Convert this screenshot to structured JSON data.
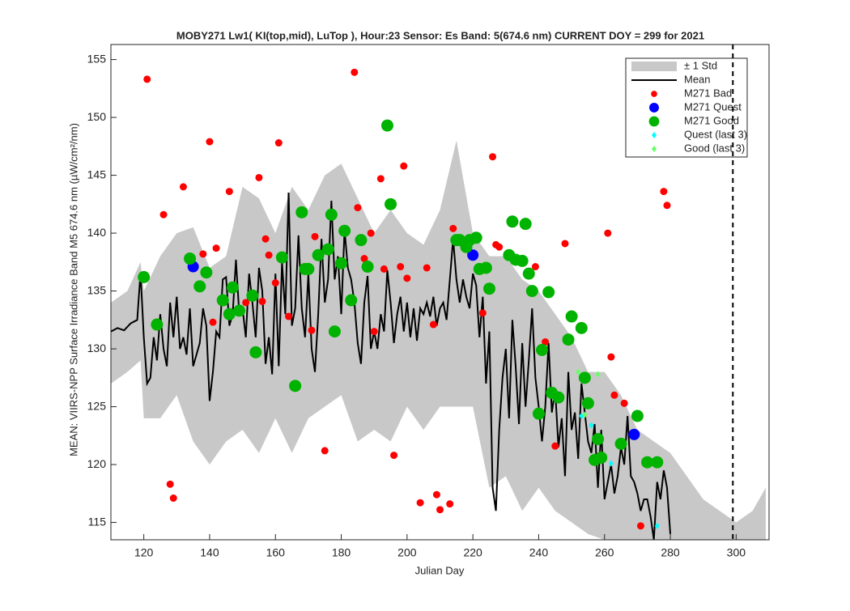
{
  "chart_data": {
    "type": "line",
    "title": "MOBY271   Lw1( KI(top,mid), LuTop ),   Hour:23 Sensor: Es Band: 5(674.6 nm)   CURRENT DOY = 299 for 2021",
    "x_label": "Julian Day",
    "y_label": "MEAN: VIIRS-NPP Surface Irradiance Band M5 674.6 nm (µW/cm²/nm)",
    "xlim": [
      110,
      310
    ],
    "ylim": [
      113.5,
      156.3
    ],
    "xticks": [
      120,
      140,
      160,
      180,
      200,
      220,
      240,
      260,
      280,
      300
    ],
    "yticks": [
      115,
      120,
      125,
      130,
      135,
      140,
      145,
      150,
      155
    ],
    "current_doy_line": 299,
    "legend": "upper right",
    "series": [
      {
        "name": "± 1 Std",
        "kind": "band",
        "color": "#c8c8c8",
        "x": [
          110,
          115,
          119,
          120,
          125,
          130,
          135,
          140,
          145,
          150,
          155,
          160,
          165,
          170,
          175,
          180,
          185,
          190,
          195,
          200,
          205,
          210,
          215,
          220,
          225,
          230,
          235,
          240,
          245,
          250,
          255,
          260,
          265,
          270,
          275,
          280,
          285,
          290,
          295,
          300,
          305,
          309
        ],
        "upper": [
          134,
          135,
          137.5,
          135,
          138,
          140,
          140.5,
          137,
          138,
          144,
          143,
          140,
          144,
          142,
          145,
          146,
          143,
          140,
          142,
          140,
          139,
          142,
          148,
          140,
          138,
          138,
          136,
          135,
          133,
          131,
          128,
          128,
          126,
          123,
          122,
          121,
          119,
          117,
          116,
          115,
          116,
          118
        ],
        "lower": [
          127,
          128,
          129,
          124,
          124,
          126,
          122,
          120,
          122,
          123,
          121,
          124,
          121,
          124,
          125,
          126,
          122,
          123,
          122,
          125,
          123,
          125,
          125,
          125,
          118,
          119,
          116,
          118,
          116,
          115,
          114,
          113.5,
          113.5,
          113.5,
          113.5,
          113.5,
          113.5,
          113.5,
          113.5,
          113.5,
          113.5,
          113.5
        ]
      },
      {
        "name": "Mean",
        "kind": "line",
        "color": "#000000",
        "x": [
          110,
          112,
          114,
          116,
          118,
          119,
          120,
          121,
          122,
          123,
          124,
          125,
          126,
          127,
          128,
          129,
          130,
          131,
          132,
          133,
          134,
          135,
          136,
          137,
          138,
          139,
          140,
          141,
          142,
          143,
          144,
          145,
          146,
          147,
          148,
          149,
          150,
          151,
          152,
          153,
          154,
          155,
          156,
          157,
          158,
          159,
          160,
          161,
          162,
          163,
          164,
          165,
          166,
          167,
          168,
          169,
          170,
          171,
          172,
          173,
          174,
          175,
          176,
          177,
          178,
          179,
          180,
          181,
          182,
          183,
          184,
          185,
          186,
          187,
          188,
          189,
          190,
          191,
          192,
          193,
          194,
          195,
          196,
          197,
          198,
          199,
          200,
          201,
          202,
          203,
          204,
          205,
          206,
          207,
          208,
          209,
          210,
          211,
          212,
          213,
          214,
          215,
          216,
          217,
          218,
          219,
          220,
          221,
          222,
          223,
          224,
          225,
          226,
          227,
          228,
          229,
          230,
          231,
          232,
          233,
          234,
          235,
          236,
          237,
          238,
          239,
          240,
          241,
          242,
          243,
          244,
          245,
          246,
          247,
          248,
          249,
          250,
          251,
          252,
          253,
          254,
          255,
          256,
          257,
          258,
          259,
          260,
          261,
          262,
          263,
          264,
          265,
          266,
          267,
          268,
          269,
          270,
          271,
          272,
          273,
          274,
          275,
          276,
          277,
          278,
          279,
          280
        ],
        "values": [
          131.5,
          131.8,
          131.6,
          132.2,
          132.5,
          136.6,
          131,
          127,
          127.5,
          131,
          129,
          133,
          130,
          128.5,
          134,
          131,
          134.5,
          130,
          131,
          129.5,
          133.5,
          128.5,
          129.5,
          130.5,
          133.5,
          132,
          125.5,
          128,
          131.5,
          131,
          136,
          136.2,
          132,
          133,
          137.7,
          133,
          133.5,
          131,
          136.5,
          134,
          131,
          137,
          135,
          128.7,
          131,
          127.8,
          136.5,
          128.5,
          137.5,
          133,
          143.5,
          132,
          133.5,
          139.8,
          133.5,
          131,
          136.5,
          130,
          128,
          133,
          139.5,
          134,
          136,
          142.8,
          136,
          138,
          133,
          140.3,
          137,
          136,
          134,
          130.5,
          128.7,
          134,
          136.3,
          130,
          131.5,
          130,
          133,
          131.5,
          136.8,
          134,
          130.5,
          133,
          134.5,
          131.5,
          134,
          131,
          133.5,
          130.7,
          133.5,
          133,
          134,
          132.8,
          134.5,
          132,
          133.5,
          134,
          132.5,
          136,
          139.5,
          136,
          134,
          136,
          134.5,
          133.5,
          136.5,
          135.5,
          131,
          134.5,
          127,
          131.5,
          118,
          116,
          123,
          127.5,
          130,
          124,
          132.5,
          128.5,
          123.5,
          130.5,
          125,
          129,
          133.5,
          127.5,
          125,
          122,
          125,
          130.5,
          124.5,
          126.5,
          121.5,
          124,
          119,
          128,
          123,
          124.5,
          120.5,
          127,
          124.5,
          122,
          121,
          123.5,
          118,
          123,
          117,
          118.5,
          120,
          117.5,
          119,
          121.5,
          120,
          124.2,
          119,
          118.5,
          117.5,
          116,
          117,
          117,
          115.5,
          113.5,
          118.5,
          117,
          119.5,
          118,
          114
        ]
      },
      {
        "name": "M271 Bad",
        "kind": "dot",
        "color": "#ff0000",
        "size": 4.5,
        "x": [
          121,
          126,
          128,
          129,
          132,
          138,
          140,
          141,
          142,
          146,
          148,
          151,
          155,
          156,
          157,
          158,
          160,
          161,
          164,
          171,
          172,
          175,
          184,
          185,
          187,
          189,
          190,
          192,
          193,
          196,
          198,
          199,
          200,
          204,
          206,
          208,
          209,
          210,
          213,
          214,
          223,
          226,
          227,
          228,
          239,
          242,
          245,
          248,
          261,
          262,
          263,
          266,
          271,
          278,
          279
        ],
        "values": [
          153.3,
          141.6,
          118.3,
          117.1,
          144,
          138.2,
          147.9,
          132.3,
          138.7,
          143.6,
          133.2,
          134,
          144.8,
          134.1,
          139.5,
          138.1,
          135.7,
          147.8,
          132.8,
          131.6,
          139.7,
          121.2,
          153.9,
          142.2,
          137.8,
          140,
          131.5,
          144.7,
          136.9,
          120.8,
          137.1,
          145.8,
          136.1,
          116.7,
          137,
          132.1,
          117.4,
          116.1,
          116.6,
          140.4,
          133.1,
          146.6,
          139,
          138.8,
          137.1,
          130.6,
          121.6,
          139.1,
          140,
          129.3,
          126,
          125.3,
          114.7,
          143.6,
          142.4
        ]
      },
      {
        "name": "M271 Quest",
        "kind": "dot",
        "color": "#0000ff",
        "size": 7,
        "x": [
          135,
          220,
          269
        ],
        "values": [
          137.1,
          138.1,
          122.6
        ]
      },
      {
        "name": "M271 Good",
        "kind": "dot",
        "color": "#00b300",
        "size": 7.5,
        "x": [
          120,
          124,
          134,
          137,
          139,
          144,
          146,
          147,
          149,
          153,
          154,
          162,
          166,
          168,
          169,
          170,
          173,
          176,
          177,
          178,
          180,
          181,
          183,
          186,
          188,
          194,
          195,
          215,
          216,
          218,
          219,
          221,
          222,
          224,
          225,
          231,
          232,
          233,
          235,
          236,
          237,
          238,
          240,
          241,
          243,
          244,
          246,
          249,
          250,
          253,
          254,
          255,
          257,
          258,
          259,
          265,
          270,
          273,
          276
        ],
        "values": [
          136.2,
          132.1,
          137.8,
          135.4,
          136.6,
          134.2,
          133,
          135.3,
          133.3,
          134.6,
          129.7,
          137.9,
          126.8,
          141.8,
          136.9,
          136.9,
          138.1,
          138.6,
          141.6,
          131.5,
          137.4,
          140.2,
          134.2,
          139.4,
          137.1,
          149.3,
          142.5,
          139.4,
          139.4,
          138.8,
          139.4,
          139.6,
          136.9,
          137,
          135.2,
          138.1,
          141,
          137.7,
          137.6,
          140.8,
          136.5,
          135,
          124.4,
          129.9,
          134.9,
          126.2,
          125.8,
          130.8,
          132.8,
          131.8,
          127.5,
          125.3,
          120.4,
          122.2,
          120.6,
          121.8,
          124.2,
          120.2,
          120.2
        ]
      },
      {
        "name": "Quest (last 3)",
        "kind": "diamond",
        "color": "#00ffff",
        "size": 4,
        "x": [
          253,
          256,
          262,
          276
        ],
        "values": [
          124.2,
          123.4,
          120.1,
          114.7
        ]
      },
      {
        "name": "Good (last 3)",
        "kind": "diamond",
        "color": "#66ff66",
        "size": 4,
        "x": [
          252,
          254,
          258
        ],
        "values": [
          128,
          124.3,
          127.8
        ]
      }
    ]
  }
}
